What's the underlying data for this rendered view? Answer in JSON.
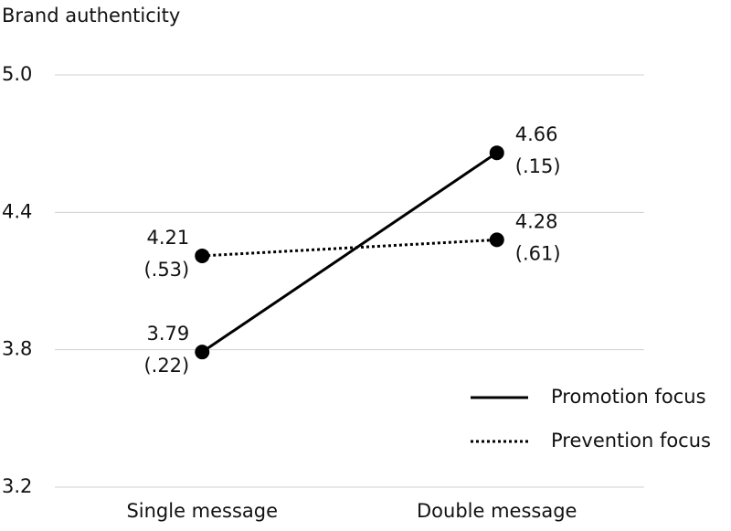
{
  "chart_data": {
    "type": "line",
    "y_label": "Brand authenticity",
    "categories": [
      "Single message",
      "Double message"
    ],
    "series": [
      {
        "name": "Promotion focus",
        "color": "#000000",
        "dash": "solid",
        "values": [
          3.79,
          4.66
        ],
        "sd_labels": [
          "(.22)",
          "(.15)"
        ]
      },
      {
        "name": "Prevention focus",
        "color": "#000000",
        "dash": "dotted",
        "values": [
          4.21,
          4.28
        ],
        "sd_labels": [
          "(.53)",
          "(.61)"
        ]
      }
    ],
    "ylim": [
      3.2,
      5.0
    ],
    "yticks": [
      3.2,
      3.8,
      4.4,
      {
        "value": 5,
        "label": "5.0"
      }
    ],
    "grid": true,
    "legend": "lower right"
  }
}
